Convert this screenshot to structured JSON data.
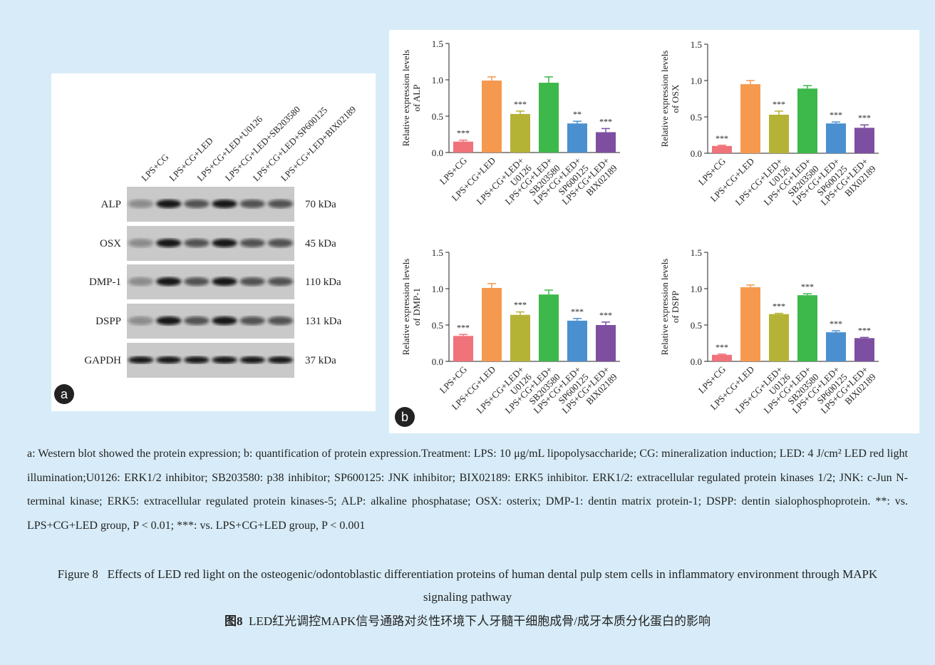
{
  "chart_data": [
    {
      "type": "bar",
      "ylabel": "Relative expression levels\nof ALP",
      "categories": [
        "LPS+CG",
        "LPS+CG+LED",
        "LPS+CG+LED+\nU0126",
        "LPS+CG+LED+\nSB203580",
        "LPS+CG+LED+\nSP600125",
        "LPS+CG+LED+\nBIX02189"
      ],
      "values": [
        0.15,
        0.99,
        0.53,
        0.96,
        0.4,
        0.28
      ],
      "errors": [
        0.02,
        0.05,
        0.04,
        0.08,
        0.03,
        0.05
      ],
      "annotations": [
        "***",
        null,
        "***",
        null,
        "**",
        "***"
      ],
      "colors": [
        "#f0727a",
        "#f5994f",
        "#b5b336",
        "#3db84a",
        "#4a90d0",
        "#7e4fa0"
      ],
      "ylim": [
        0,
        1.5
      ],
      "yticks": [
        {
          "value": 0,
          "label": "0.0"
        },
        0.5,
        {
          "value": 1,
          "label": "1.0"
        },
        1.5
      ]
    },
    {
      "type": "bar",
      "ylabel": "Relative expression levels\nof OSX",
      "categories": [
        "LPS+CG",
        "LPS+CG+LED",
        "LPS+CG+LED+\nU0126",
        "LPS+CG+LED+\nSB203580",
        "LPS+CG+LED+\nSP600125",
        "LPS+CG+LED+\nBIX02189"
      ],
      "values": [
        0.1,
        0.95,
        0.53,
        0.89,
        0.41,
        0.35
      ],
      "errors": [
        0.01,
        0.05,
        0.05,
        0.04,
        0.02,
        0.04
      ],
      "annotations": [
        "***",
        null,
        "***",
        null,
        "***",
        "***"
      ],
      "colors": [
        "#f0727a",
        "#f5994f",
        "#b5b336",
        "#3db84a",
        "#4a90d0",
        "#7e4fa0"
      ],
      "ylim": [
        0,
        1.5
      ],
      "yticks": [
        {
          "value": 0,
          "label": "0.0"
        },
        0.5,
        {
          "value": 1,
          "label": "1.0"
        },
        1.5
      ]
    },
    {
      "type": "bar",
      "ylabel": "Relative expression levels\nof DMP-1",
      "categories": [
        "LPS+CG",
        "LPS+CG+LED",
        "LPS+CG+LED+\nU0126",
        "LPS+CG+LED+\nSB203580",
        "LPS+CG+LED+\nSP600125",
        "LPS+CG+LED+\nBIX02189"
      ],
      "values": [
        0.35,
        1.01,
        0.64,
        0.92,
        0.56,
        0.5
      ],
      "errors": [
        0.02,
        0.06,
        0.04,
        0.06,
        0.03,
        0.04
      ],
      "annotations": [
        "***",
        null,
        "***",
        null,
        "***",
        "***"
      ],
      "colors": [
        "#f0727a",
        "#f5994f",
        "#b5b336",
        "#3db84a",
        "#4a90d0",
        "#7e4fa0"
      ],
      "ylim": [
        0,
        1.5
      ],
      "yticks": [
        {
          "value": 0,
          "label": "0.0"
        },
        0.5,
        {
          "value": 1,
          "label": "1.0"
        },
        1.5
      ]
    },
    {
      "type": "bar",
      "ylabel": "Relative expression levels\nof DSPP",
      "categories": [
        "LPS+CG",
        "LPS+CG+LED",
        "LPS+CG+LED+\nU0126",
        "LPS+CG+LED+\nSB203580",
        "LPS+CG+LED+\nSP600125",
        "LPS+CG+LED+\nBIX02189"
      ],
      "values": [
        0.09,
        1.02,
        0.65,
        0.91,
        0.4,
        0.32
      ],
      "errors": [
        0.01,
        0.03,
        0.01,
        0.02,
        0.02,
        0.01
      ],
      "annotations": [
        "***",
        null,
        "***",
        "***",
        "***",
        "***"
      ],
      "colors": [
        "#f0727a",
        "#f5994f",
        "#b5b336",
        "#3db84a",
        "#4a90d0",
        "#7e4fa0"
      ],
      "ylim": [
        0,
        1.5
      ],
      "yticks": [
        {
          "value": 0,
          "label": "0.0"
        },
        0.5,
        {
          "value": 1,
          "label": "1.0"
        },
        1.5
      ]
    }
  ],
  "blot": {
    "panel": "a",
    "lanes": [
      "LPS+CG",
      "LPS+CG+LED",
      "LPS+CG+LED+U0126",
      "LPS+CG+LED+SB203580",
      "LPS+CG+LED+SP600125",
      "LPS+CG+LED+BIX02189"
    ],
    "rows": [
      {
        "protein": "ALP",
        "size": "70 kDa"
      },
      {
        "protein": "OSX",
        "size": "45 kDa"
      },
      {
        "protein": "DMP-1",
        "size": "110 kDa"
      },
      {
        "protein": "DSPP",
        "size": "131 kDa"
      },
      {
        "protein": "GAPDH",
        "size": "37 kDa"
      }
    ]
  },
  "charts_panel": "b",
  "caption": {
    "note": "a: Western blot showed the protein expression; b: quantification of protein expression.Treatment: LPS: 10 μg/mL lipopolysaccharide; CG: mineralization induction; LED: 4 J/cm² LED red light illumination;U0126: ERK1/2 inhibitor; SB203580: p38 inhibitor; SP600125: JNK inhibitor; BIX02189: ERK5 inhibitor. ERK1/2: extracellular regulated protein kinases 1/2; JNK: c-Jun N-terminal kinase; ERK5: extracellular regulated protein kinases-5; ALP: alkaline phosphatase; OSX: osterix; DMP-1: dentin matrix protein-1; DSPP: dentin sialophosphoprotein. **: vs. LPS+CG+LED group, P < 0.01; ***: vs. LPS+CG+LED group, P < 0.001",
    "label_en": "Figure 8",
    "title_en": "Effects of LED red light on the osteogenic/odontoblastic differentiation proteins of human dental pulp stem cells in inflammatory environment through MAPK signaling pathway",
    "label_cn": "图8",
    "title_cn": "LED红光调控MAPK信号通路对炎性环境下人牙髓干细胞成骨/成牙本质分化蛋白的影响"
  }
}
